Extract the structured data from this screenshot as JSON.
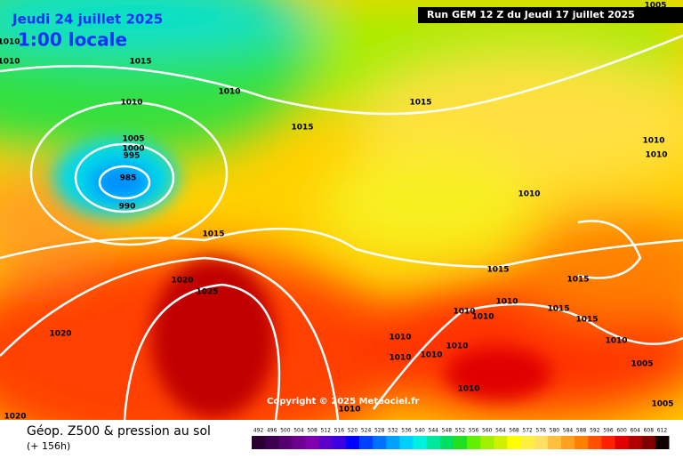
{
  "header": {
    "title": "Jeudi 24 juillet 2025",
    "time": "1:00 locale",
    "run": "Run GEM 12 Z du Jeudi 17 juillet 2025"
  },
  "copyright": "Copyright © 2025 Meteociel.fr",
  "footer": {
    "title": "Géop. Z500 & pression au sol",
    "lead": "(+ 156h)"
  },
  "scale": {
    "labels": [
      "492",
      "496",
      "500",
      "504",
      "508",
      "512",
      "516",
      "520",
      "524",
      "528",
      "532",
      "536",
      "540",
      "544",
      "548",
      "552",
      "556",
      "560",
      "564",
      "568",
      "572",
      "576",
      "580",
      "584",
      "588",
      "592",
      "596",
      "600",
      "604",
      "608",
      "612"
    ],
    "colors": [
      "#2a0033",
      "#3d0050",
      "#55006e",
      "#6e0090",
      "#8000b0",
      "#5a00c8",
      "#3a00e0",
      "#0000ff",
      "#0040ff",
      "#0070ff",
      "#00a0ff",
      "#00d0ff",
      "#00f0e0",
      "#00e8a0",
      "#00e060",
      "#20e020",
      "#60f000",
      "#a0f000",
      "#d0f000",
      "#ffff00",
      "#fff040",
      "#ffe060",
      "#ffc040",
      "#ffa020",
      "#ff8000",
      "#ff5000",
      "#ff2000",
      "#e00000",
      "#b00000",
      "#800000",
      "#100000"
    ]
  },
  "isobars": [
    "1005",
    "1010",
    "1010",
    "1015",
    "1010",
    "1010",
    "1015",
    "1015",
    "1005",
    "1000",
    "995",
    "985",
    "990",
    "1010",
    "1010",
    "1010",
    "1015",
    "1020",
    "1025",
    "1020",
    "1015",
    "1015",
    "1010",
    "1010",
    "1010",
    "1015",
    "1015",
    "1010",
    "1010",
    "1010",
    "1010",
    "1010",
    "1005",
    "1010",
    "1010",
    "1005",
    "1020"
  ]
}
